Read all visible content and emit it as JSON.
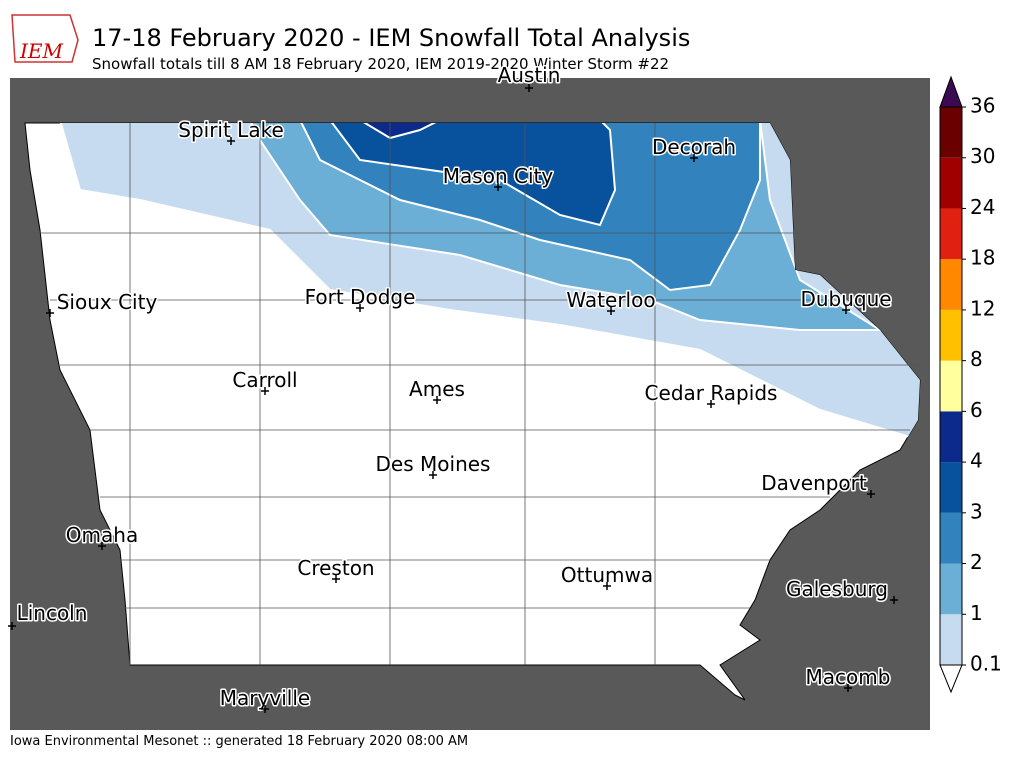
{
  "header": {
    "logo": "IEM",
    "title": "17-18 February 2020 - IEM Snowfall Total Analysis",
    "subtitle": "Snowfall totals till 8 AM 18 February 2020, IEM 2019-2020 Winter Storm #22"
  },
  "cities": [
    "Austin",
    "Spirit Lake",
    "Mason City",
    "Decorah",
    "Sioux City",
    "Fort Dodge",
    "Waterloo",
    "Dubuque",
    "Carroll",
    "Ames",
    "Cedar Rapids",
    "Des Moines",
    "Davenport",
    "Omaha",
    "Creston",
    "Ottumwa",
    "Galesburg",
    "Lincoln",
    "Macomb",
    "Maryville"
  ],
  "legend": {
    "ticks": [
      0.1,
      1,
      2,
      3,
      4,
      6,
      8,
      12,
      18,
      24,
      30,
      36
    ],
    "colors": [
      "#c6dbef",
      "#6baed6",
      "#3182bd",
      "#08519c",
      "#0b2a8c",
      "#ffff9e",
      "#ffc000",
      "#ff8800",
      "#e02010",
      "#a00000",
      "#6a0000"
    ],
    "over_color": "#3b0a50",
    "under_color": "#ffffff"
  },
  "footer": "Iowa Environmental Mesonet :: generated 18 February 2020 08:00 AM"
}
